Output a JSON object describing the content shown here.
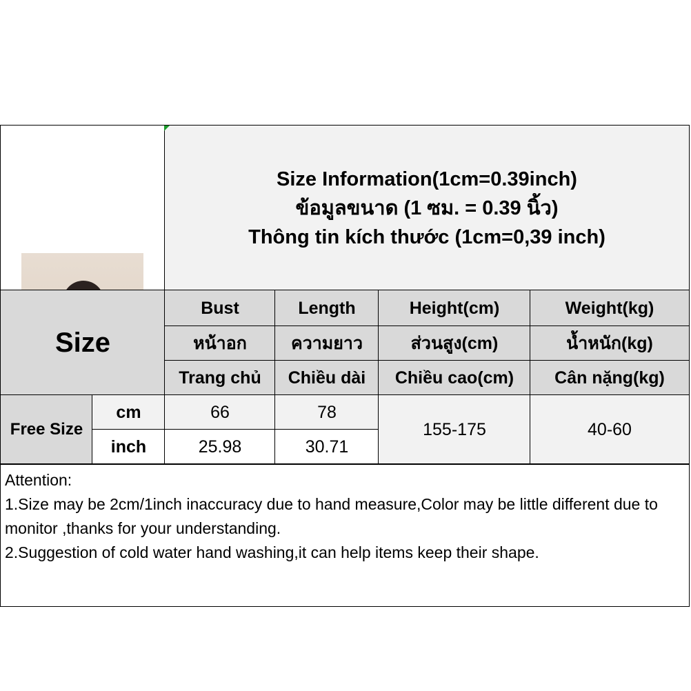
{
  "title": {
    "line1": "Size Information(1cm=0.39inch)",
    "line2": "ข้อมูลขนาด (1 ซม. = 0.39 นิ้ว)",
    "line3": "Thông tin kích thước (1cm=0,39 inch)"
  },
  "size_label": "Size",
  "columns": [
    {
      "en": "Bust",
      "th": "หน้าอก",
      "vi": "Trang chủ"
    },
    {
      "en": "Length",
      "th": "ความยาว",
      "vi": "Chiều dài"
    },
    {
      "en": "Height(cm)",
      "th": "ส่วนสูง(cm)",
      "vi": "Chiều cao(cm)"
    },
    {
      "en": "Weight(kg)",
      "th": "น้ำหนัก(kg)",
      "vi": "Cân nặng(kg)"
    }
  ],
  "rows": {
    "size_name": "Free Size",
    "cm": {
      "unit": "cm",
      "bust": "66",
      "length": "78"
    },
    "inch": {
      "unit": "inch",
      "bust": "25.98",
      "length": "30.71"
    },
    "height": "155-175",
    "weight": "40-60"
  },
  "notes": {
    "heading": "Attention:",
    "line1": "1.Size may be 2cm/1inch inaccuracy due to hand measure,Color may be little different due to monitor ,thanks for your understanding.",
    "line2": "2.Suggestion of cold water hand washing,it can help items keep their shape."
  },
  "colors": {
    "header_bg": "#d9d9d9",
    "light_bg": "#f2f2f2"
  }
}
